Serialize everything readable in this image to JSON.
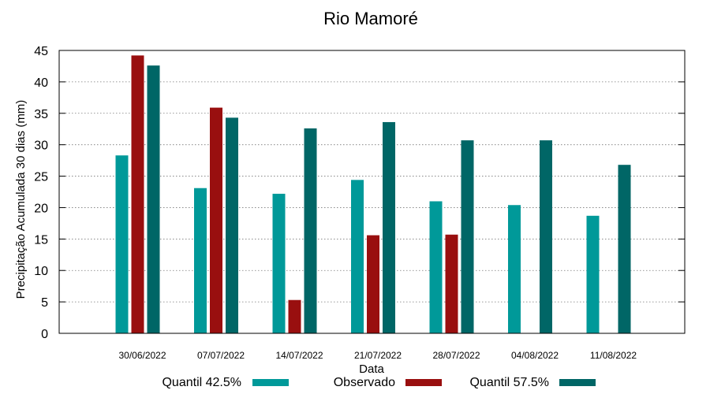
{
  "chart_data": {
    "type": "bar",
    "title": "Rio Mamoré",
    "xlabel": "Data",
    "ylabel": "Precipitação Acumulada 30 dias (mm)",
    "ylim": [
      0,
      45
    ],
    "yticks": [
      0,
      5,
      10,
      15,
      20,
      25,
      30,
      35,
      40,
      45
    ],
    "grid": true,
    "legend_position": "bottom",
    "categories": [
      "30/06/2022",
      "07/07/2022",
      "14/07/2022",
      "21/07/2022",
      "28/07/2022",
      "04/08/2022",
      "11/08/2022"
    ],
    "series": [
      {
        "name": "Quantil 42.5%",
        "color": "#009999",
        "values": [
          28.3,
          23.1,
          22.2,
          24.4,
          21.0,
          20.4,
          18.7
        ]
      },
      {
        "name": "Observado",
        "color": "#990f0f",
        "values": [
          44.2,
          35.9,
          5.3,
          15.6,
          15.7,
          null,
          null
        ]
      },
      {
        "name": "Quantil 57.5%",
        "color": "#006666",
        "values": [
          42.6,
          34.3,
          32.6,
          33.6,
          30.7,
          30.7,
          26.8
        ]
      }
    ]
  }
}
